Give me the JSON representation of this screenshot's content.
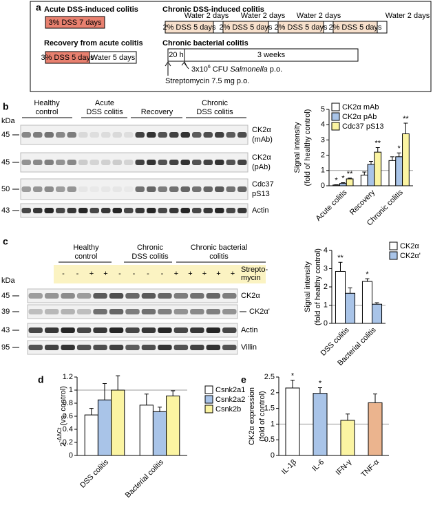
{
  "panel_a": {
    "letter": "a",
    "acute": {
      "title": "Acute DSS-induced colitis",
      "step": "3% DSS 7 days"
    },
    "chronic_dss": {
      "title": "Chronic DSS-induced colitis",
      "dss_steps": [
        "2% DSS 5 days",
        "2% DSS 5 days",
        "2% DSS 5 days",
        "2% DSS 5 days"
      ],
      "water_steps": [
        "Water 2 days",
        "Water 2 days",
        "Water 2 days",
        "Water 2 days"
      ]
    },
    "recovery": {
      "title": "Recovery from acute colitis",
      "dss_step": "3% DSS 5 days",
      "water_step": "Water 5 days"
    },
    "bacterial": {
      "title": "Chronic bacterial colitis",
      "first_step": "20 h",
      "second_step": "3 weeks",
      "salmonella": {
        "prefix": "3x10",
        "sup": "6",
        "unit": "CFU",
        "organism": "Salmonella",
        "route": "p.o."
      },
      "streptomycin": "Streptomycin 7.5 mg p.o."
    }
  },
  "panel_b_blot": {
    "letter": "b",
    "kda": "kDa",
    "groups": [
      [
        "Healthy",
        "control"
      ],
      [
        "Acute",
        "DSS colitis"
      ],
      [
        "Recovery"
      ],
      [
        "Chronic",
        "DSS colitis"
      ]
    ],
    "rows": [
      {
        "marker": 45,
        "label": [
          "CK2α",
          "(mAb)"
        ]
      },
      {
        "marker": 45,
        "label": [
          "CK2α",
          "(pAb)"
        ]
      },
      {
        "marker": 50,
        "label": [
          "Cdc37",
          "pS13"
        ]
      },
      {
        "marker": 43,
        "label": [
          "Actin"
        ]
      }
    ]
  },
  "panel_c_blot": {
    "letter": "c",
    "kda": "kDa",
    "groups": [
      [
        "Healthy",
        "control"
      ],
      [
        "Chronic",
        "DSS colitis"
      ],
      [
        "Chronic bacterial",
        "colitis"
      ]
    ],
    "streptomycin_label": [
      "Strepto-",
      "mycin"
    ],
    "streptomycin": [
      "-",
      "-",
      "+",
      "+",
      "-",
      "-",
      "-",
      "-",
      "+",
      "+",
      "+",
      "+",
      "+"
    ],
    "rows": [
      {
        "marker": 45,
        "label": [
          "CK2α"
        ]
      },
      {
        "marker": 39,
        "label": [
          "CK2α'"
        ]
      },
      {
        "marker": 43,
        "label": [
          "Actin"
        ]
      },
      {
        "marker": 95,
        "label": [
          "Villin"
        ]
      }
    ]
  },
  "chart_data": [
    {
      "type": "bar",
      "ylabel": [
        "Signal intensity",
        "(fold of healthy control)"
      ],
      "categories": [
        "Acute colitis",
        "Recovery",
        "Chronic colitis"
      ],
      "ylim": [
        0,
        5
      ],
      "yticks": [
        0,
        1,
        2,
        3,
        4,
        5
      ],
      "reference_line": 1,
      "series": [
        {
          "name": "CK2α mAb",
          "color": "#ffffff",
          "values": [
            0.05,
            0.7,
            1.65
          ],
          "errors": [
            0.02,
            0.2,
            0.25
          ],
          "significance": [
            "*",
            null,
            null
          ]
        },
        {
          "name": "CK2α pAb",
          "color": "#a9c4e8",
          "values": [
            0.15,
            1.4,
            1.9
          ],
          "errors": [
            0.05,
            0.2,
            0.25
          ],
          "significance": [
            "*",
            null,
            "*"
          ]
        },
        {
          "name": "Cdc37 pS13",
          "color": "#fbf4a2",
          "values": [
            0.45,
            2.2,
            3.4
          ],
          "errors": [
            0.05,
            0.3,
            0.7
          ],
          "significance": [
            "**",
            "**",
            "**"
          ]
        }
      ]
    },
    {
      "type": "bar",
      "ylabel": [
        "Signal intensity",
        "(fold of healthy control)"
      ],
      "categories": [
        "DSS colitis",
        "Bacterial colitis"
      ],
      "ylim": [
        0,
        4
      ],
      "yticks": [
        0,
        1,
        2,
        3,
        4
      ],
      "reference_line": 1,
      "series": [
        {
          "name": "CK2α",
          "color": "#ffffff",
          "values": [
            2.85,
            2.3
          ],
          "errors": [
            0.5,
            0.15
          ],
          "significance": [
            "**",
            "*"
          ]
        },
        {
          "name": "CK2α'",
          "color": "#a9c4e8",
          "values": [
            1.65,
            1.05
          ],
          "errors": [
            0.3,
            0.08
          ],
          "significance": [
            null,
            null
          ]
        }
      ]
    },
    {
      "type": "bar",
      "panel": "d",
      "ylabel": {
        "base": "2",
        "sup": "-ΔΔCt",
        "rest": "(vs. control)"
      },
      "categories": [
        "DSS colitis",
        "Bacterial colitis"
      ],
      "ylim": [
        0,
        1.2
      ],
      "yticks": [
        0,
        0.2,
        0.4,
        0.6,
        0.8,
        1,
        1.2
      ],
      "reference_line": 1,
      "series": [
        {
          "name": "Csnk2a1",
          "color": "#ffffff",
          "values": [
            0.62,
            0.77
          ],
          "errors": [
            0.1,
            0.17
          ],
          "significance": [
            null,
            null
          ]
        },
        {
          "name": "Csnk2a2",
          "color": "#a9c4e8",
          "values": [
            0.85,
            0.67
          ],
          "errors": [
            0.25,
            0.07
          ],
          "significance": [
            null,
            null
          ]
        },
        {
          "name": "Csnk2b",
          "color": "#fbf4a2",
          "values": [
            1.0,
            0.91
          ],
          "errors": [
            0.22,
            0.08
          ],
          "significance": [
            null,
            null
          ]
        }
      ]
    },
    {
      "type": "bar",
      "panel": "e",
      "ylabel": [
        "CK2α expression",
        "(fold of control)"
      ],
      "categories": [
        "IL-1β",
        "IL-6",
        "IFN-γ",
        "TNF-α"
      ],
      "ylim": [
        0,
        2.5
      ],
      "yticks": [
        0,
        0.5,
        1,
        1.5,
        2,
        2.5
      ],
      "reference_line": 1,
      "values": [
        2.15,
        1.98,
        1.12,
        1.68
      ],
      "errors": [
        0.25,
        0.18,
        0.2,
        0.28
      ],
      "colors": [
        "#ffffff",
        "#a9c4e8",
        "#fbf4a2",
        "#ebb48e"
      ],
      "significance": [
        "*",
        "*",
        null,
        null
      ]
    }
  ]
}
